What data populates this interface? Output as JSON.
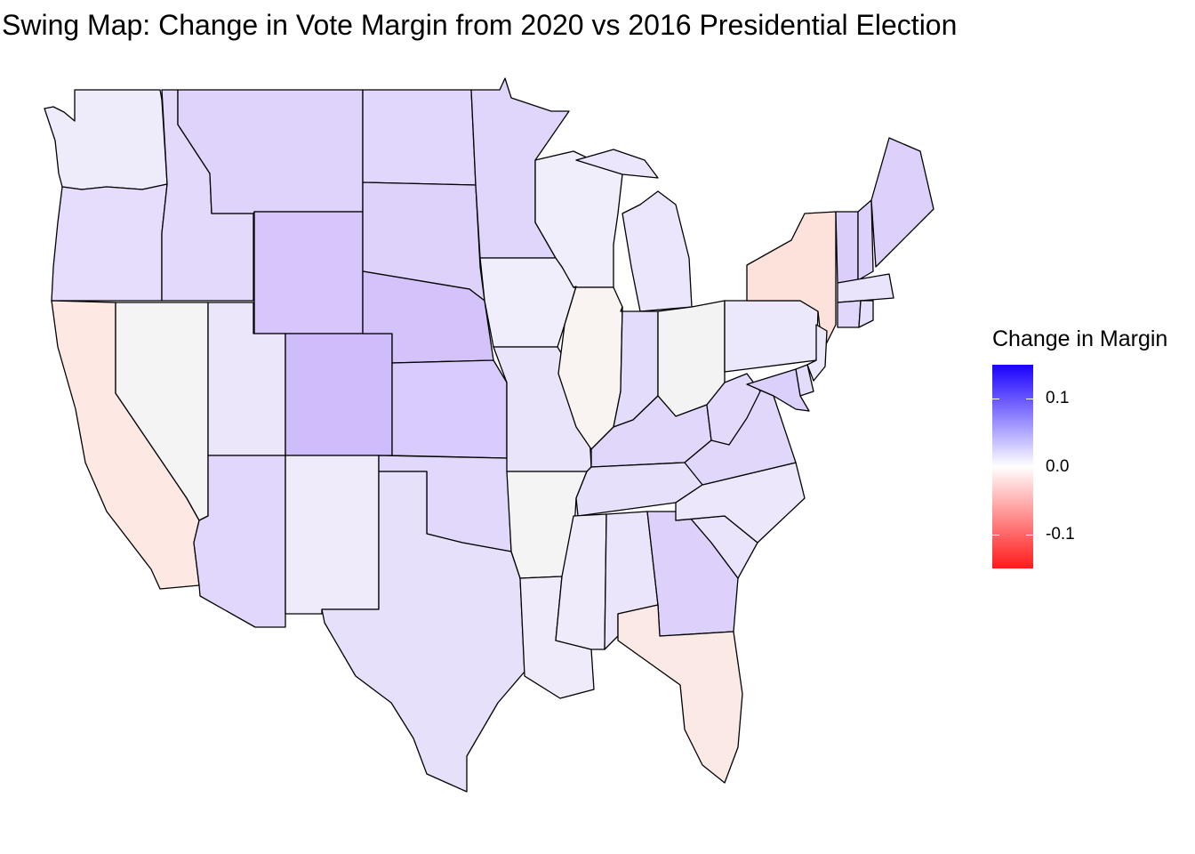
{
  "title": "Swing Map: Change in Vote Margin from 2020 vs 2016 Presidential Election",
  "legend": {
    "title": "Change in Margin",
    "range": [
      -0.15,
      0.15
    ],
    "colors": {
      "low": "#ff1a1a",
      "mid": "#ffffff",
      "high": "#1a00ff"
    },
    "ticks": [
      {
        "value": 0.1,
        "label": "0.1"
      },
      {
        "value": 0.0,
        "label": "0.0"
      },
      {
        "value": -0.1,
        "label": "-0.1"
      }
    ]
  },
  "state_colors": {
    "WA": "#eeebfb",
    "OR": "#e6dcfb",
    "CA": "#fde8e4",
    "NV": "#f4f4f4",
    "ID": "#e3d9fb",
    "MT": "#dfd3fb",
    "WY": "#d6c6fb",
    "UT": "#ece6fb",
    "AZ": "#e1d6fb",
    "CO": "#cfbcfb",
    "NM": "#efebfb",
    "ND": "#e1d6fb",
    "SD": "#ded2fb",
    "NE": "#d4c3fb",
    "KS": "#d9cbfb",
    "OK": "#e2d8fb",
    "TX": "#e7e0fb",
    "MN": "#e0d5fb",
    "IA": "#f0eefb",
    "MO": "#eae4fb",
    "AR": "#f4f4f4",
    "LA": "#efebfb",
    "WI": "#f0eefb",
    "IL": "#f9f3f1",
    "MI": "#ebe6fb",
    "IN": "#e4dcfb",
    "OH": "#f3f3f3",
    "KY": "#e1d7fb",
    "TN": "#e7e0fb",
    "MS": "#efebfb",
    "AL": "#ebe5fb",
    "GA": "#ddd1fb",
    "FL": "#fbe9e6",
    "SC": "#e9e3fb",
    "NC": "#ece7fb",
    "VA": "#e1d7fb",
    "WV": "#e2d9fb",
    "PA": "#ece8fb",
    "NY": "#fde2dc",
    "ME": "#ddd1fb",
    "VT": "#dbcefb",
    "NH": "#ddd1fb",
    "MA": "#e9e3fb",
    "CT": "#e1d6fb",
    "RI": "#e6dffb",
    "NJ": "#ece8fb",
    "DE": "#e4dcfb",
    "MD": "#dbcffb"
  }
}
